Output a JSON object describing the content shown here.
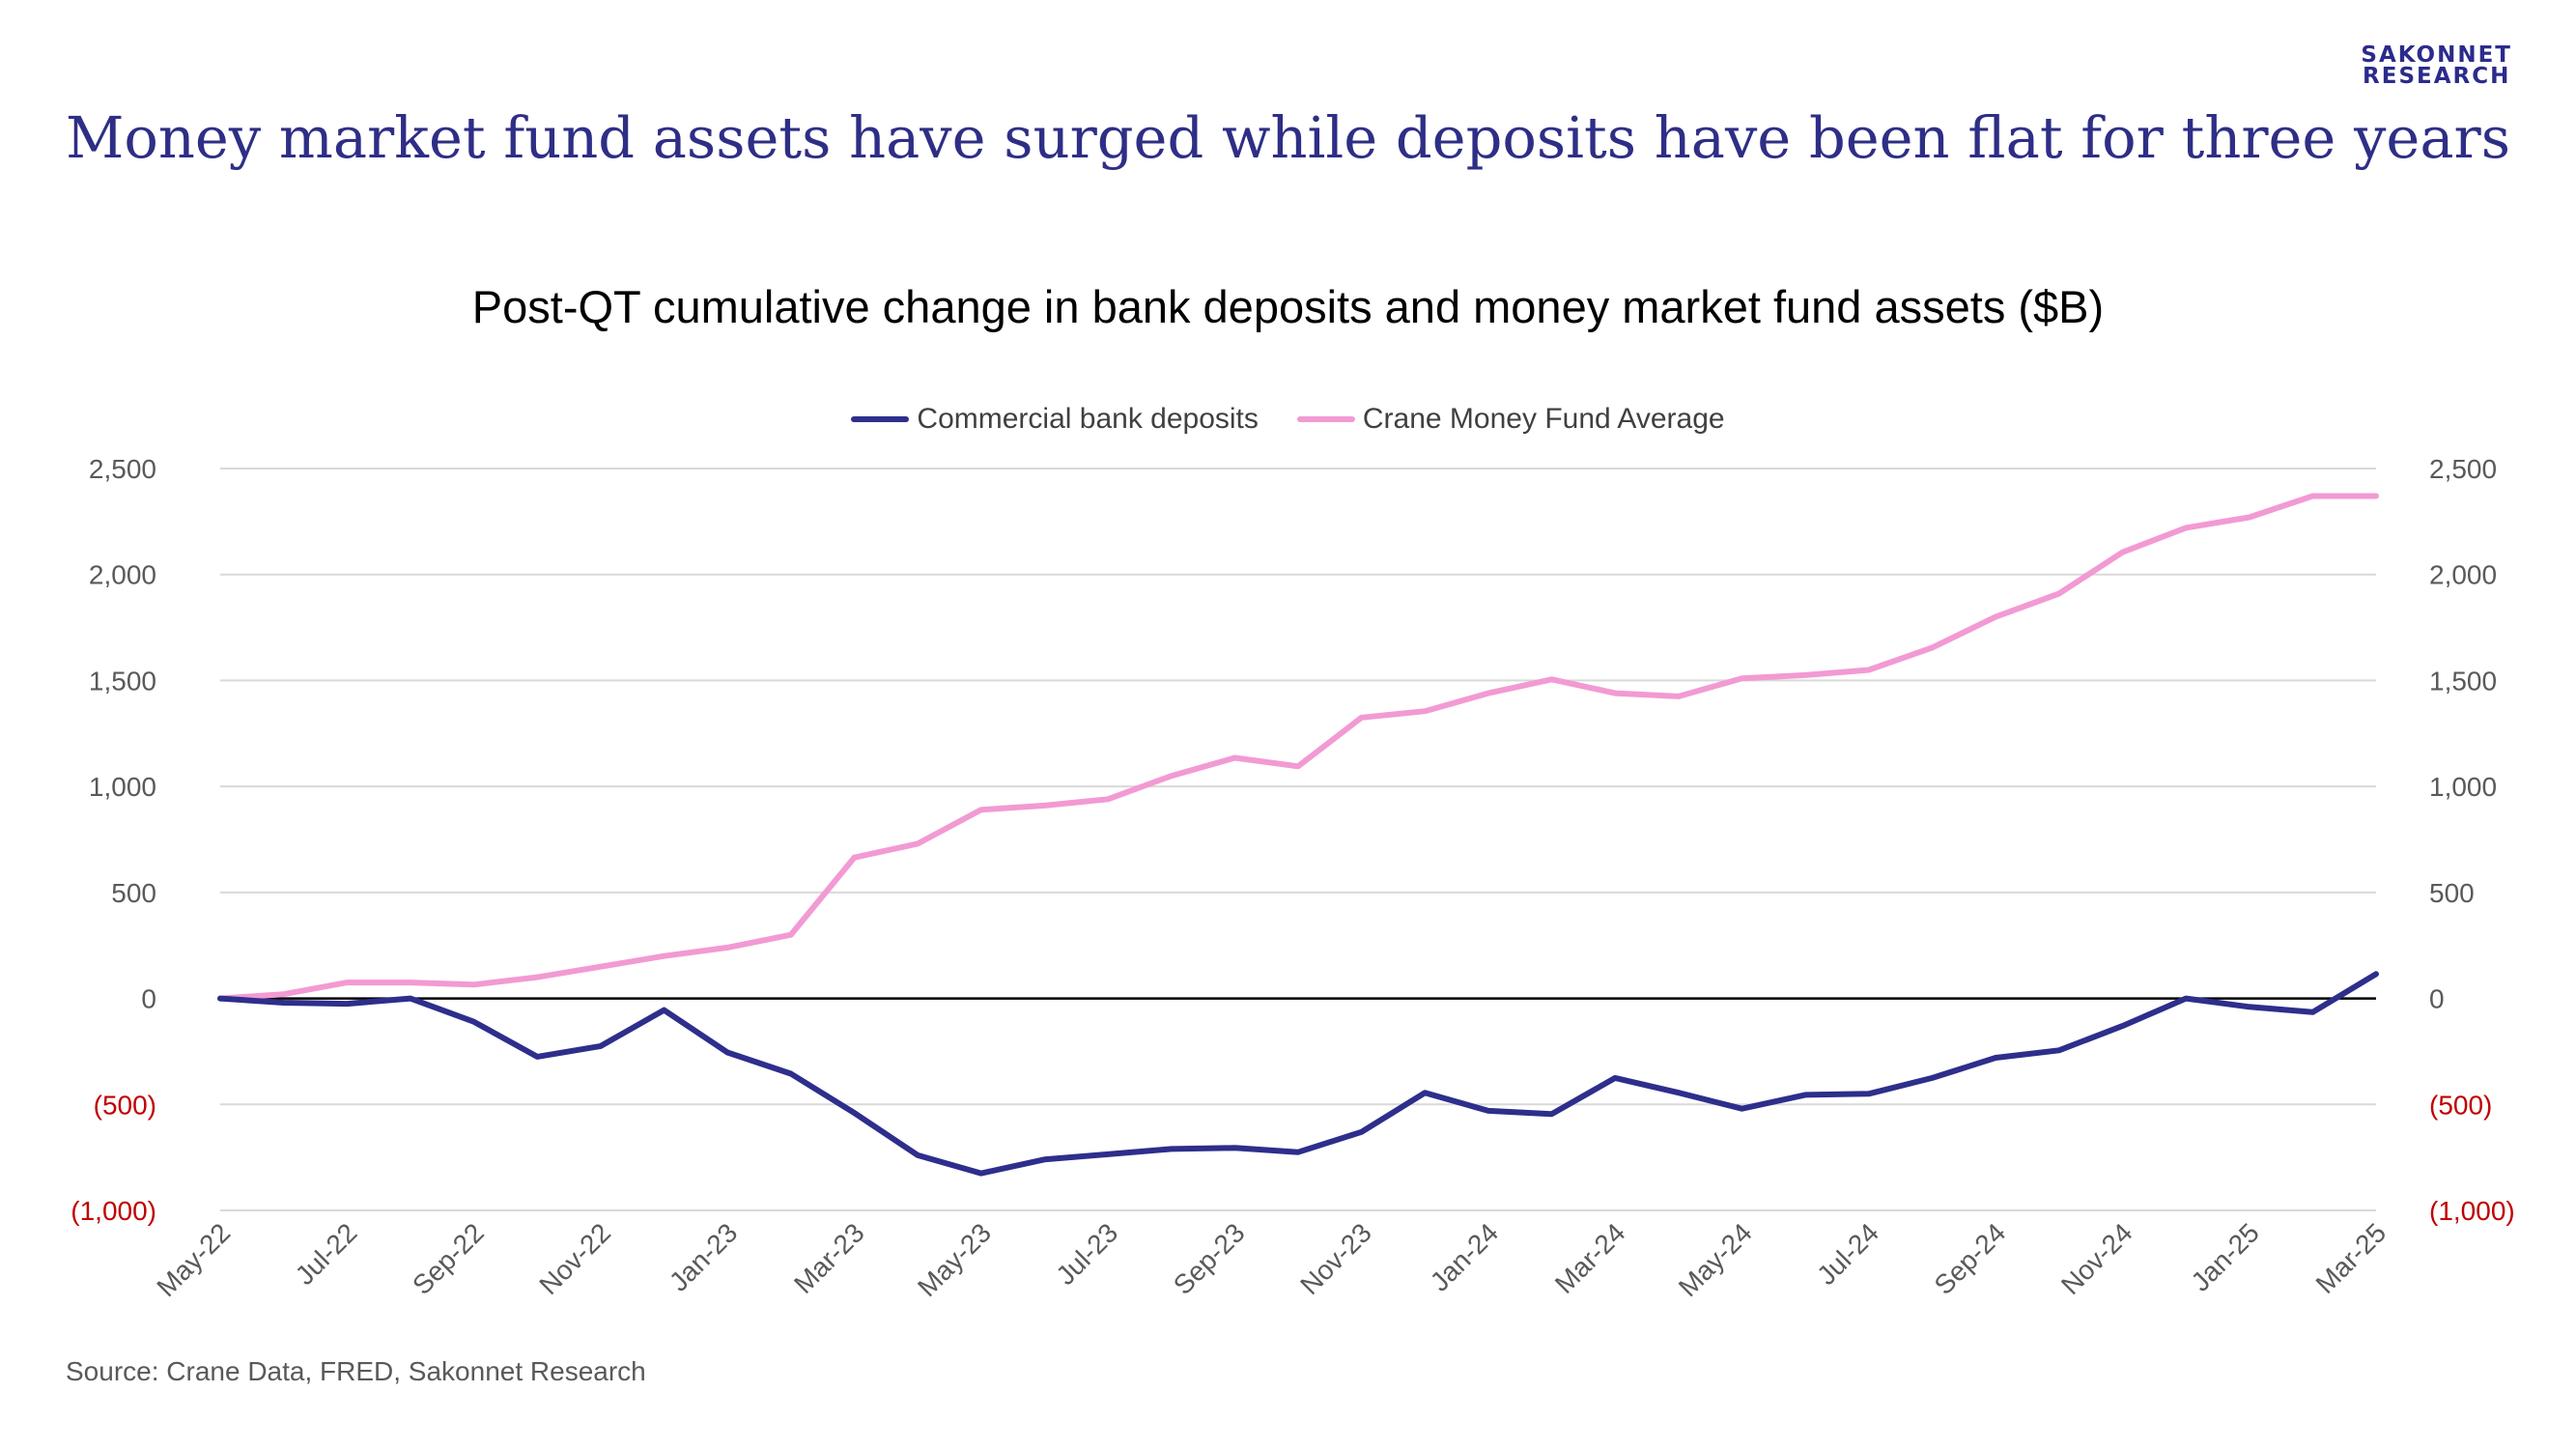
{
  "brand": {
    "line1": "SAKONNET",
    "line2": "RESEARCH"
  },
  "headline": "Money market fund assets have surged while deposits have been flat for three years",
  "source": "Source: Crane Data, FRED, Sakonnet Research",
  "colors": {
    "deposits": "#2e2e8c",
    "crane": "#f29ad3",
    "negative_tick": "#c00000",
    "tick": "#595959"
  },
  "chart_data": {
    "type": "line",
    "title": "Post-QT cumulative change in bank deposits and money market fund assets ($B)",
    "xlabel": "",
    "ylabel": "",
    "ylim": [
      -1000,
      2500
    ],
    "y_ticks": [
      2500,
      2000,
      1500,
      1000,
      500,
      0,
      -500,
      -1000
    ],
    "y_tick_labels": [
      "2,500",
      "2,000",
      "1,500",
      "1,000",
      "500",
      "0",
      "(500)",
      "(1,000)"
    ],
    "x_tick_labels": [
      "May-22",
      "Jul-22",
      "Sep-22",
      "Nov-22",
      "Jan-23",
      "Mar-23",
      "May-23",
      "Jul-23",
      "Sep-23",
      "Nov-23",
      "Jan-24",
      "Mar-24",
      "May-24",
      "Jul-24",
      "Sep-24",
      "Nov-24",
      "Jan-25",
      "Mar-25"
    ],
    "categories": [
      "May-22",
      "Jun-22",
      "Jul-22",
      "Aug-22",
      "Sep-22",
      "Oct-22",
      "Nov-22",
      "Dec-22",
      "Jan-23",
      "Feb-23",
      "Mar-23",
      "Apr-23",
      "May-23",
      "Jun-23",
      "Jul-23",
      "Aug-23",
      "Sep-23",
      "Oct-23",
      "Nov-23",
      "Dec-23",
      "Jan-24",
      "Feb-24",
      "Mar-24",
      "Apr-24",
      "May-24",
      "Jun-24",
      "Jul-24",
      "Aug-24",
      "Sep-24",
      "Oct-24",
      "Nov-24",
      "Dec-24",
      "Jan-25",
      "Feb-25",
      "Mar-25"
    ],
    "legend_position": "top-center",
    "grid": true,
    "series": [
      {
        "name": "Commercial bank deposits",
        "values": [
          0,
          -20,
          -25,
          0,
          -110,
          -275,
          -225,
          -55,
          -255,
          -355,
          -540,
          -740,
          -825,
          -760,
          -735,
          -710,
          -705,
          -725,
          -630,
          -445,
          -530,
          -545,
          -375,
          -445,
          -520,
          -455,
          -450,
          -375,
          -280,
          -245,
          -130,
          0,
          -40,
          -65,
          115
        ]
      },
      {
        "name": "Crane Money Fund Average",
        "values": [
          0,
          20,
          75,
          75,
          65,
          100,
          150,
          200,
          240,
          300,
          665,
          730,
          890,
          910,
          940,
          1050,
          1135,
          1095,
          1325,
          1355,
          1440,
          1505,
          1440,
          1425,
          1510,
          1525,
          1550,
          1655,
          1800,
          1910,
          2105,
          2220,
          2270,
          2370,
          2370
        ]
      }
    ]
  }
}
